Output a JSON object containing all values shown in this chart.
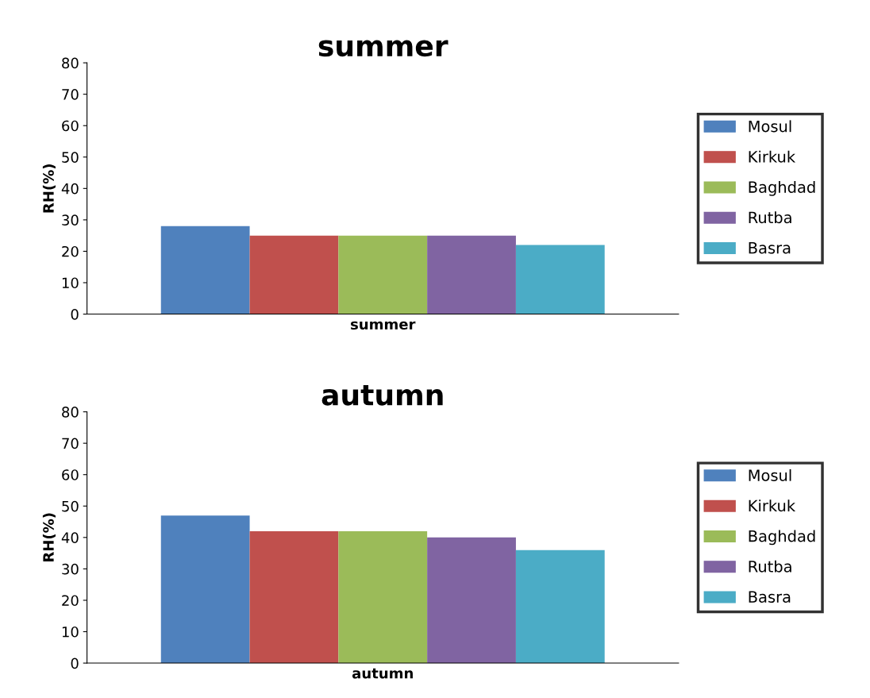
{
  "chart_data": [
    {
      "type": "bar",
      "title": "summer",
      "xlabel": "summer",
      "ylabel": "RH(%)",
      "categories": [
        null
      ],
      "ylim": [
        0,
        80
      ],
      "yticks": [
        0,
        10,
        20,
        30,
        40,
        50,
        60,
        70,
        80
      ],
      "grid": false,
      "legend": "right",
      "tick_labels": "y",
      "series": [
        {
          "name": "Mosul",
          "color": "#4f81bd",
          "values": [
            28
          ]
        },
        {
          "name": "Kirkuk",
          "color": "#c0504d",
          "values": [
            25
          ]
        },
        {
          "name": "Baghdad",
          "color": "#9bbb59",
          "values": [
            25
          ]
        },
        {
          "name": "Rutba",
          "color": "#8064a2",
          "values": [
            25
          ]
        },
        {
          "name": "Basra",
          "color": "#4bacc6",
          "values": [
            22
          ]
        }
      ]
    },
    {
      "type": "bar",
      "title": "autumn",
      "xlabel": "autumn",
      "ylabel": "RH(%)",
      "categories": [
        null
      ],
      "ylim": [
        0,
        80
      ],
      "yticks": [
        0,
        10,
        20,
        30,
        40,
        50,
        60,
        70,
        80
      ],
      "grid": false,
      "legend": "right",
      "tick_labels": "y",
      "series": [
        {
          "name": "Mosul",
          "color": "#4f81bd",
          "values": [
            47
          ]
        },
        {
          "name": "Kirkuk",
          "color": "#c0504d",
          "values": [
            42
          ]
        },
        {
          "name": "Baghdad",
          "color": "#9bbb59",
          "values": [
            42
          ]
        },
        {
          "name": "Rutba",
          "color": "#8064a2",
          "values": [
            40
          ]
        },
        {
          "name": "Basra",
          "color": "#4bacc6",
          "values": [
            36
          ]
        }
      ]
    }
  ]
}
